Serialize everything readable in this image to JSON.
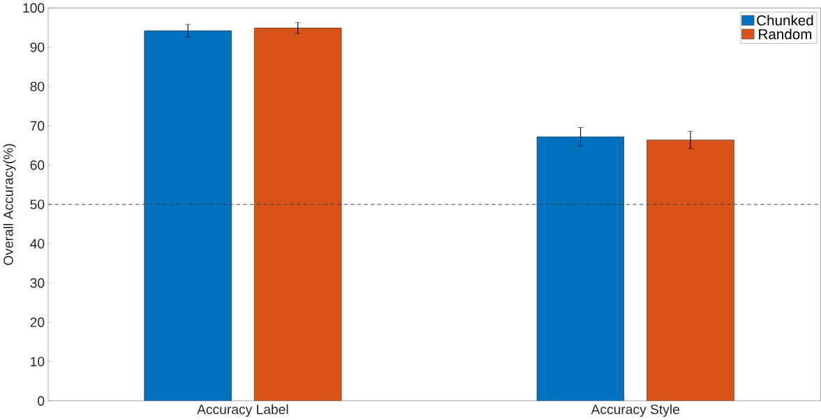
{
  "chart_data": {
    "type": "bar",
    "ylabel": "Overall Accuracy(%)",
    "categories": [
      "Accuracy Label",
      "Accuracy Style"
    ],
    "series": [
      {
        "name": "Chunked",
        "color": "#0072bd",
        "values": [
          94.2,
          67.2
        ],
        "errors": [
          1.6,
          2.4
        ]
      },
      {
        "name": "Random",
        "color": "#d95319",
        "values": [
          94.9,
          66.4
        ],
        "errors": [
          1.4,
          2.2
        ]
      }
    ],
    "ylim": [
      0,
      100
    ],
    "yticks": [
      0,
      10,
      20,
      30,
      40,
      50,
      60,
      70,
      80,
      90,
      100
    ],
    "ref_lines": [
      {
        "axis": "y",
        "value": 50,
        "color": "#404040",
        "line_style": "dashed"
      }
    ],
    "legend": "top right",
    "grid": false
  }
}
